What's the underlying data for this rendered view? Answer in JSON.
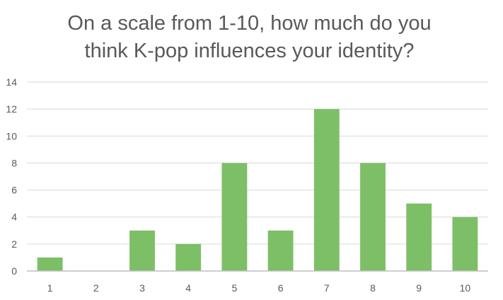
{
  "chart_data": {
    "type": "bar",
    "title_lines": [
      "On a scale from 1-10, how much do you",
      "think K-pop influences your identity?"
    ],
    "categories": [
      "1",
      "2",
      "3",
      "4",
      "5",
      "6",
      "7",
      "8",
      "9",
      "10"
    ],
    "values": [
      1,
      0,
      3,
      2,
      8,
      3,
      12,
      8,
      5,
      4
    ],
    "ylim": [
      0,
      14
    ],
    "yticks": [
      "0",
      "2",
      "4",
      "6",
      "8",
      "10",
      "12",
      "14"
    ],
    "bar_color": "#7dbf67",
    "grid": true,
    "legend": "none"
  }
}
